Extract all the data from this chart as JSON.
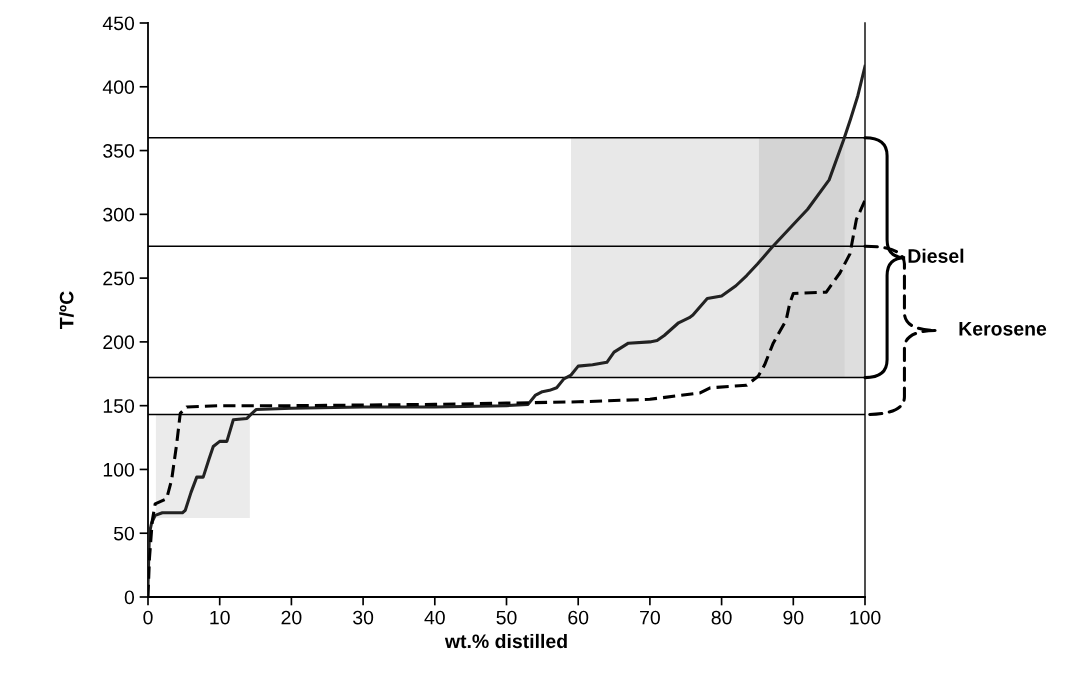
{
  "chart_data": {
    "type": "line",
    "xlabel": "wt.% distilled",
    "ylabel": "T/ºC",
    "xlim": [
      0,
      100
    ],
    "xticks": [
      0,
      10,
      20,
      30,
      40,
      50,
      60,
      70,
      80,
      90,
      100
    ],
    "ylim": [
      0,
      450
    ],
    "yticks": [
      0,
      50,
      100,
      150,
      200,
      250,
      300,
      350,
      400,
      450
    ],
    "grid": false,
    "marker": "none",
    "ref_lines": [
      {
        "axis": "y",
        "value": 360,
        "color": "#000000"
      },
      {
        "axis": "y",
        "value": 275,
        "color": "#000000"
      },
      {
        "axis": "y",
        "value": 172,
        "color": "#000000"
      },
      {
        "axis": "y",
        "value": 143,
        "color": "#000000"
      }
    ],
    "annotations": [
      "Diesel",
      "Kerosene"
    ],
    "series": [
      {
        "type": "line",
        "color": "#ebebeb",
        "x": [
          1.1,
          7,
          14.2
        ],
        "values": [
          null,
          null,
          null
        ],
        "lower": [
          62,
          62,
          62
        ],
        "upper": [
          143,
          143,
          143
        ]
      },
      {
        "type": "line",
        "color": "#e8e8e8",
        "x": [
          59,
          72,
          85.2
        ],
        "values": [
          null,
          null,
          null
        ],
        "lower": [
          172,
          172,
          172
        ],
        "upper": [
          360,
          360,
          360
        ]
      },
      {
        "type": "line",
        "color": "#d4d4d4",
        "x": [
          85.2,
          91,
          97.2
        ],
        "values": [
          null,
          null,
          null
        ],
        "lower": [
          172,
          172,
          172
        ],
        "upper": [
          360,
          360,
          360
        ]
      },
      {
        "type": "line",
        "color": "#dedede",
        "x": [
          97.2,
          98.6,
          100
        ],
        "values": [
          null,
          null,
          null
        ],
        "lower": [
          172,
          172,
          172
        ],
        "upper": [
          360,
          360,
          360
        ]
      },
      {
        "color": "#222222",
        "line_style": "solid",
        "x": [
          0,
          0.2,
          0.5,
          1,
          2,
          4.8,
          5.2,
          6,
          6.8,
          7.7,
          8.5,
          9.1,
          10,
          11,
          11.9,
          13.8,
          14.5,
          15.1,
          20,
          30,
          40,
          50,
          53,
          54,
          55,
          56,
          57,
          58,
          59,
          60,
          62,
          64,
          65,
          67,
          70,
          71,
          72,
          74,
          75.5,
          76,
          78,
          80,
          82,
          83.5,
          85,
          87,
          90,
          92,
          95,
          97,
          98,
          99,
          100
        ],
        "values": [
          10,
          50,
          58,
          64,
          66,
          66,
          68,
          82,
          94,
          94,
          108,
          118,
          122,
          122,
          139,
          140,
          144,
          147,
          148,
          149,
          149,
          150,
          151,
          158,
          161,
          162,
          164,
          171,
          174,
          181,
          182,
          184,
          192,
          199,
          200,
          201,
          205,
          215,
          219,
          221,
          234,
          236,
          244,
          252,
          261,
          274,
          292,
          304,
          327,
          358,
          375,
          393,
          416
        ]
      },
      {
        "color": "#000000",
        "line_style": "dashed",
        "x": [
          0,
          0.2,
          0.6,
          1,
          2.6,
          3.3,
          4,
          4.5,
          5.4,
          10,
          20,
          40,
          50,
          60,
          70,
          77,
          78.4,
          83.5,
          85.1,
          86,
          87.2,
          89,
          89.5,
          90,
          94.6,
          96.5,
          97.9,
          98.8,
          100
        ],
        "values": [
          0,
          30,
          60,
          73,
          77,
          92,
          120,
          144,
          149,
          150,
          150,
          151,
          152,
          153,
          155,
          160,
          164,
          166,
          173,
          182,
          199,
          217,
          230,
          238,
          239,
          254,
          269,
          296,
          311
        ]
      }
    ]
  }
}
